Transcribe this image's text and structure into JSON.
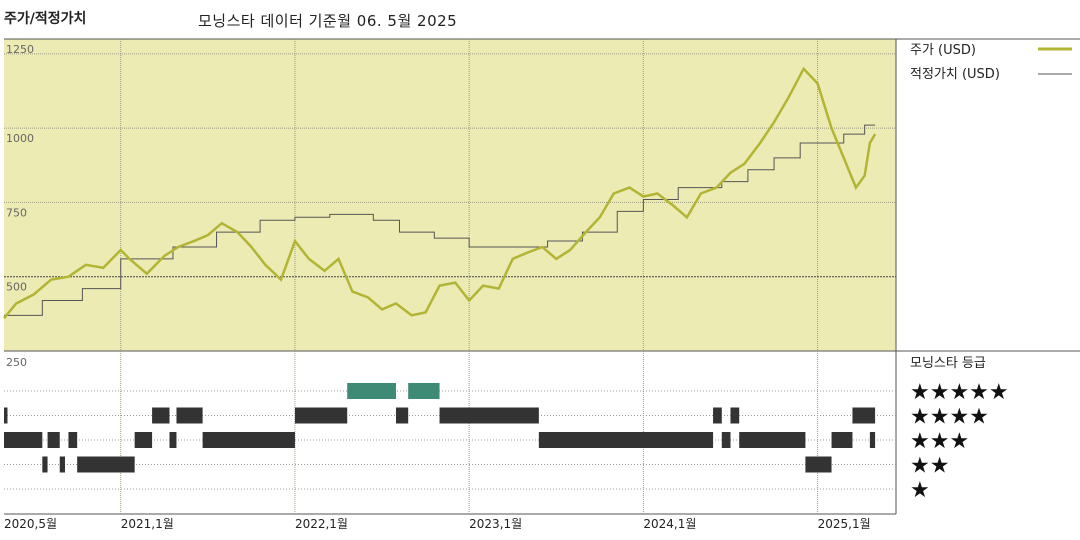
{
  "header": {
    "title": "주가/적정가치",
    "subtitle": "모닝스타 데이터 기준월 06. 5월 2025"
  },
  "colors": {
    "plot_background": "#ecebb4",
    "price_line": "#b2b534",
    "fair_value_line": "#555555",
    "five_star_bars": "#3f8a75",
    "rating_bars": "#333333"
  },
  "chart_data": {
    "type": "line",
    "title": "주가/적정가치",
    "x_tick_labels": [
      "2020,5월",
      "2021,1월",
      "2022,1월",
      "2023,1월",
      "2024,1월",
      "2025,1월"
    ],
    "x_tick_positions": [
      2020.33,
      2021.0,
      2022.0,
      2023.0,
      2024.0,
      2025.0
    ],
    "xlim": [
      2020.33,
      2025.45
    ],
    "ylim": [
      250,
      1300
    ],
    "y_ticks": [
      250,
      500,
      750,
      1000,
      1250
    ],
    "grid": true,
    "legend_position": "right",
    "series": [
      {
        "name": "주가 (USD)",
        "x": [
          2020.33,
          2020.4,
          2020.5,
          2020.6,
          2020.7,
          2020.8,
          2020.9,
          2021.0,
          2021.05,
          2021.15,
          2021.25,
          2021.33,
          2021.42,
          2021.5,
          2021.58,
          2021.67,
          2021.75,
          2021.83,
          2021.92,
          2022.0,
          2022.08,
          2022.17,
          2022.25,
          2022.33,
          2022.42,
          2022.5,
          2022.58,
          2022.67,
          2022.75,
          2022.83,
          2022.92,
          2023.0,
          2023.08,
          2023.17,
          2023.25,
          2023.33,
          2023.42,
          2023.5,
          2023.58,
          2023.67,
          2023.75,
          2023.83,
          2023.92,
          2024.0,
          2024.08,
          2024.17,
          2024.25,
          2024.33,
          2024.42,
          2024.5,
          2024.58,
          2024.67,
          2024.75,
          2024.83,
          2024.92,
          2025.0,
          2025.08,
          2025.15,
          2025.22,
          2025.27,
          2025.3,
          2025.33
        ],
        "y": [
          360,
          410,
          440,
          490,
          500,
          540,
          530,
          590,
          560,
          510,
          570,
          600,
          620,
          640,
          680,
          650,
          600,
          540,
          490,
          620,
          560,
          520,
          560,
          450,
          430,
          390,
          410,
          370,
          380,
          470,
          480,
          420,
          470,
          460,
          560,
          580,
          600,
          560,
          590,
          650,
          700,
          780,
          800,
          770,
          780,
          740,
          700,
          780,
          800,
          850,
          880,
          950,
          1020,
          1100,
          1200,
          1150,
          1000,
          900,
          800,
          840,
          950,
          980
        ]
      },
      {
        "name": "적정가치 (USD)",
        "x": [
          2020.33,
          2020.55,
          2020.78,
          2021.0,
          2021.3,
          2021.55,
          2021.8,
          2022.0,
          2022.2,
          2022.45,
          2022.6,
          2022.8,
          2023.0,
          2023.25,
          2023.45,
          2023.65,
          2023.85,
          2024.0,
          2024.2,
          2024.45,
          2024.6,
          2024.75,
          2024.9,
          2025.15,
          2025.27,
          2025.33
        ],
        "y": [
          370,
          420,
          460,
          560,
          600,
          650,
          690,
          700,
          710,
          690,
          650,
          630,
          600,
          600,
          620,
          650,
          720,
          760,
          800,
          820,
          860,
          900,
          950,
          980,
          1010,
          1010
        ]
      }
    ],
    "rating_panel": {
      "title": "모닝스타 등급",
      "levels": [
        "★★★★★",
        "★★★★",
        "★★★",
        "★★",
        "★"
      ],
      "periods": [
        {
          "stars": 4,
          "from": 2020.33,
          "to": 2020.35
        },
        {
          "stars": 3,
          "from": 2020.33,
          "to": 2020.55
        },
        {
          "stars": 3,
          "from": 2020.58,
          "to": 2020.65
        },
        {
          "stars": 3,
          "from": 2020.7,
          "to": 2020.75
        },
        {
          "stars": 2,
          "from": 2020.55,
          "to": 2020.58
        },
        {
          "stars": 2,
          "from": 2020.65,
          "to": 2020.68
        },
        {
          "stars": 2,
          "from": 2020.75,
          "to": 2021.08
        },
        {
          "stars": 3,
          "from": 2021.08,
          "to": 2021.18
        },
        {
          "stars": 4,
          "from": 2021.18,
          "to": 2021.28
        },
        {
          "stars": 4,
          "from": 2021.32,
          "to": 2021.47
        },
        {
          "stars": 3,
          "from": 2021.28,
          "to": 2021.32
        },
        {
          "stars": 3,
          "from": 2021.47,
          "to": 2022.0
        },
        {
          "stars": 4,
          "from": 2022.0,
          "to": 2022.3
        },
        {
          "stars": 5,
          "from": 2022.3,
          "to": 2022.58
        },
        {
          "stars": 4,
          "from": 2022.58,
          "to": 2022.65
        },
        {
          "stars": 5,
          "from": 2022.65,
          "to": 2022.83
        },
        {
          "stars": 4,
          "from": 2022.83,
          "to": 2023.4
        },
        {
          "stars": 3,
          "from": 2023.4,
          "to": 2024.4
        },
        {
          "stars": 4,
          "from": 2024.4,
          "to": 2024.45
        },
        {
          "stars": 3,
          "from": 2024.45,
          "to": 2024.5
        },
        {
          "stars": 4,
          "from": 2024.5,
          "to": 2024.55
        },
        {
          "stars": 3,
          "from": 2024.55,
          "to": 2024.93
        },
        {
          "stars": 2,
          "from": 2024.93,
          "to": 2025.08
        },
        {
          "stars": 3,
          "from": 2025.08,
          "to": 2025.2
        },
        {
          "stars": 4,
          "from": 2025.2,
          "to": 2025.33
        },
        {
          "stars": 3,
          "from": 2025.3,
          "to": 2025.33
        }
      ]
    }
  }
}
